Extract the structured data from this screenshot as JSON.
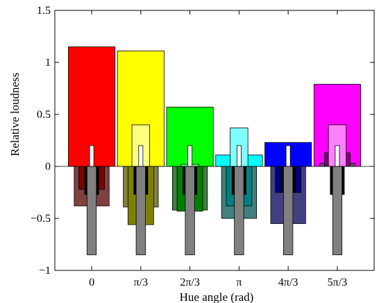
{
  "chart_data": {
    "type": "bar",
    "xlabel": "Hue angle (rad)",
    "ylabel": "Relative loudness",
    "ylim": [
      -1,
      1.5
    ],
    "y_ticks": [
      {
        "value": 1.5,
        "label": "1.5"
      },
      {
        "value": 1,
        "label": "1"
      },
      {
        "value": 0.5,
        "label": "0.5"
      },
      {
        "value": 0,
        "label": "0"
      },
      {
        "value": -0.5,
        "label": "−0.5"
      },
      {
        "value": -1,
        "label": "−1"
      }
    ],
    "x_ticks": [
      "0",
      "π/3",
      "2π/3",
      "π",
      "4π/3",
      "5π/3"
    ],
    "grid": false,
    "legend": "none",
    "groups": [
      {
        "category": "0",
        "main_value": 1.15,
        "main_color": "#ff0000",
        "light_value": 0.0,
        "light_color": "#ff8080",
        "dark_value": -0.38,
        "dark_color": "#804040",
        "dark_inner_value": -0.22,
        "dark_inner_color": "#800000",
        "dark_core_value": -0.27,
        "dark_core_color": "#000000",
        "white_value": 0.2,
        "gray_value": -0.85
      },
      {
        "category": "π/3",
        "main_value": 1.11,
        "main_color": "#ffff00",
        "light_value": 0.4,
        "light_color": "#ffff80",
        "dark_value": -0.39,
        "dark_color": "#808040",
        "dark_inner_value": -0.56,
        "dark_inner_color": "#808000",
        "dark_core_value": -0.27,
        "dark_core_color": "#000000",
        "white_value": 0.2,
        "gray_value": -0.85
      },
      {
        "category": "2π/3",
        "main_value": 0.57,
        "main_color": "#00ff00",
        "light_value": 0.02,
        "light_color": "#80ff80",
        "dark_value": -0.42,
        "dark_color": "#408040",
        "dark_inner_value": -0.43,
        "dark_inner_color": "#008000",
        "dark_core_value": -0.27,
        "dark_core_color": "#000000",
        "white_value": 0.2,
        "gray_value": -0.85
      },
      {
        "category": "π",
        "main_value": 0.11,
        "main_color": "#00ffff",
        "light_value": 0.37,
        "light_color": "#80ffff",
        "dark_value": -0.5,
        "dark_color": "#408080",
        "dark_inner_value": -0.38,
        "dark_inner_color": "#008080",
        "dark_core_value": -0.27,
        "dark_core_color": "#000000",
        "white_value": 0.2,
        "gray_value": -0.85
      },
      {
        "category": "4π/3",
        "main_value": 0.23,
        "main_color": "#0000ff",
        "light_value": 0.0,
        "light_color": "#8080ff",
        "dark_value": -0.55,
        "dark_color": "#404080",
        "dark_inner_value": -0.25,
        "dark_inner_color": "#000080",
        "dark_core_value": -0.25,
        "dark_core_color": "#000000",
        "white_value": 0.2,
        "gray_value": -0.85
      },
      {
        "category": "5π/3",
        "main_value": 0.79,
        "main_color": "#ff00ff",
        "light_value": 0.4,
        "light_color": "#ff80ff",
        "dark_value": 0.03,
        "dark_color": "#804080",
        "dark_inner_value": 0.13,
        "dark_inner_color": "#800080",
        "dark_core_value": -0.27,
        "dark_core_color": "#000000",
        "white_value": 0.2,
        "gray_value": -0.85
      }
    ]
  }
}
